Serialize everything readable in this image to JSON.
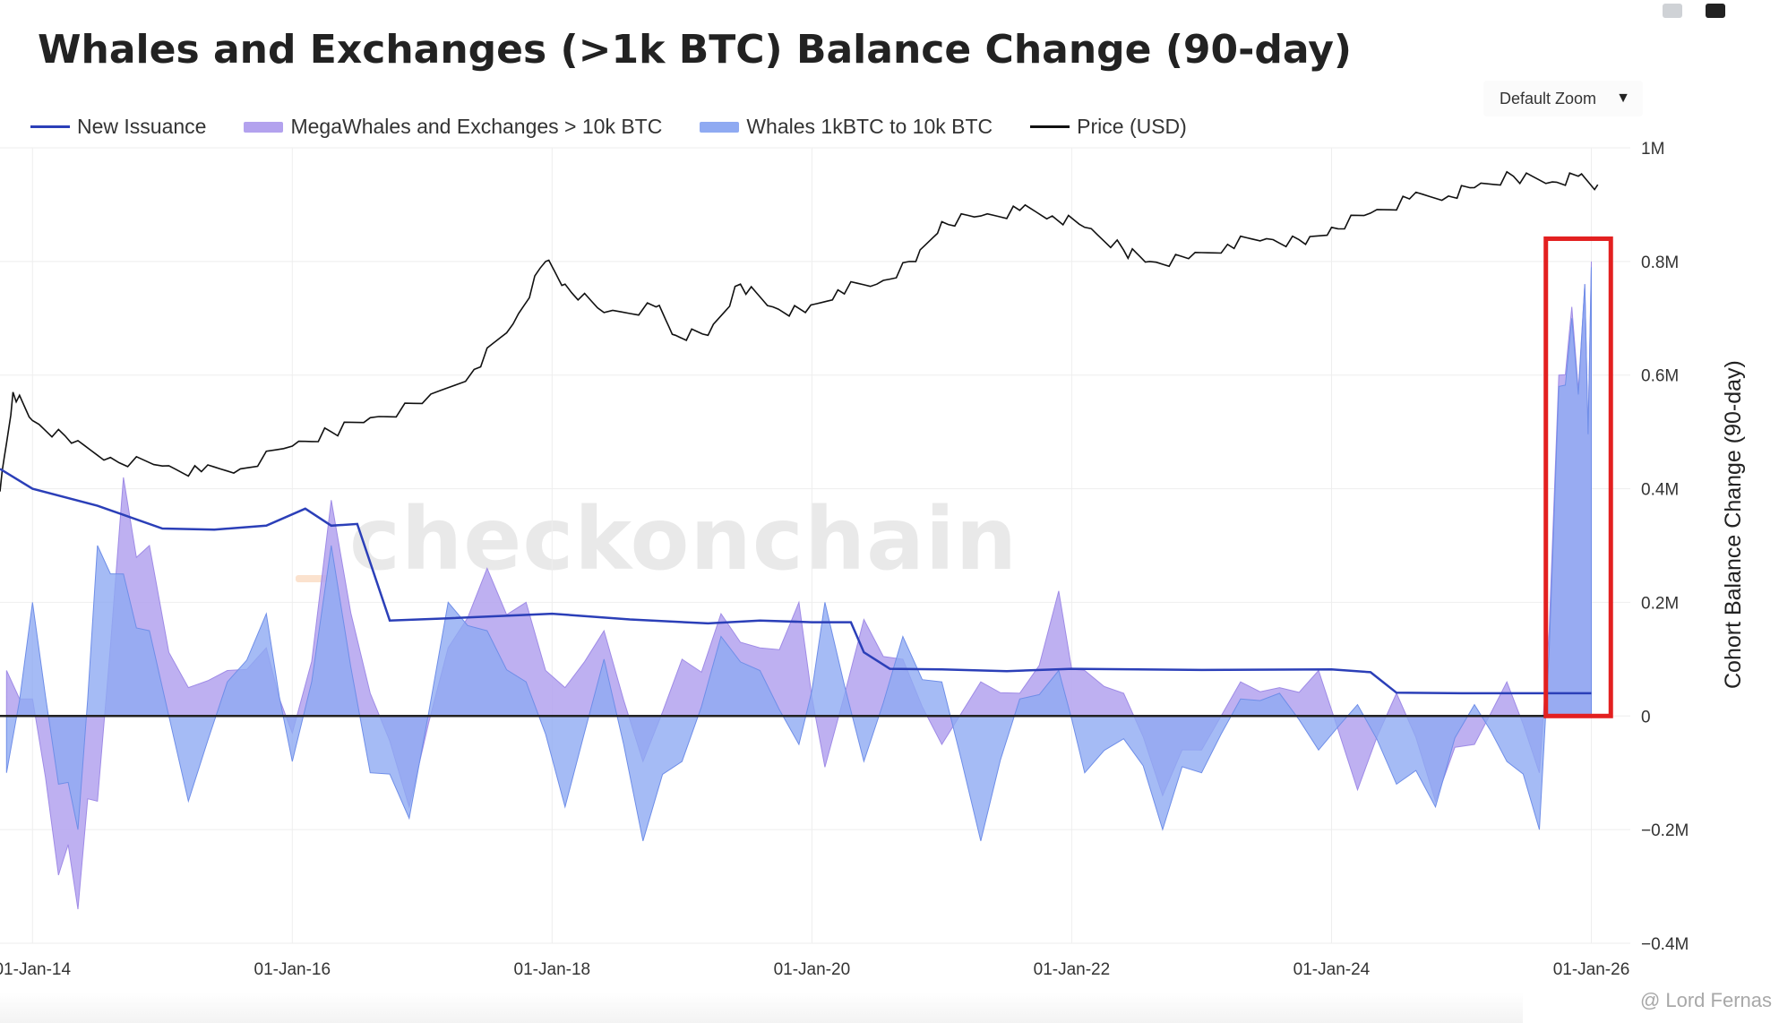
{
  "header": {
    "title": "Whales and Exchanges (>1k BTC) Balance Change (90-day)",
    "zoom_label": "Default Zoom",
    "zoom_arrow": "▼"
  },
  "icons": {
    "camera": "camera-icon",
    "bars": "bar-chart-icon",
    "dropdown": "caret-down-icon"
  },
  "watermark": "checkonchain",
  "credit": "@ Lord Fernas",
  "colors": {
    "issuance": "#2b3fb8",
    "mega": "#b3a2ee",
    "whales": "#8faaf2",
    "price": "#111111",
    "highlight": "#e32020",
    "zero": "#222222",
    "grid": "#eeeeee"
  },
  "chart_data": {
    "type": "area",
    "title": "Whales and Exchanges (>1k BTC) Balance Change (90-day)",
    "ylabel": "Cohort Balance Change (90-day)",
    "ylim": [
      -400000,
      1000000
    ],
    "yticks": [
      -400000,
      -200000,
      0,
      200000,
      400000,
      600000,
      800000,
      1000000
    ],
    "ytick_labels": [
      "−0.4M",
      "−0.2M",
      "0",
      "0.2M",
      "0.4M",
      "0.6M",
      "0.8M",
      "1M"
    ],
    "xticks": [
      2014.0,
      2016.0,
      2018.0,
      2020.0,
      2022.0,
      2024.0,
      2026.0
    ],
    "xtick_labels": [
      "01-Jan-14",
      "01-Jan-16",
      "01-Jan-18",
      "01-Jan-20",
      "01-Jan-22",
      "01-Jan-24",
      "01-Jan-26"
    ],
    "xrange": [
      2013.75,
      2026.3
    ],
    "legend": [
      {
        "name": "New Issuance",
        "kind": "line"
      },
      {
        "name": "MegaWhales and Exchanges > 10k BTC",
        "kind": "area"
      },
      {
        "name": "Whales 1kBTC to 10k BTC",
        "kind": "area"
      },
      {
        "name": "Price (USD)",
        "kind": "line"
      }
    ],
    "series": [
      {
        "name": "New Issuance",
        "axis": "left",
        "x": [
          2013.75,
          2014.0,
          2014.5,
          2015.0,
          2015.4,
          2015.8,
          2016.1,
          2016.3,
          2016.5,
          2016.75,
          2017.2,
          2018.0,
          2018.6,
          2019.2,
          2019.6,
          2020.0,
          2020.3,
          2020.4,
          2020.6,
          2021.0,
          2021.5,
          2022.0,
          2023.0,
          2024.0,
          2024.3,
          2024.5,
          2025.0,
          2026.0
        ],
        "values": [
          435000,
          400000,
          370000,
          330000,
          328000,
          335000,
          365000,
          335000,
          338000,
          168000,
          172000,
          180000,
          170000,
          163000,
          168000,
          165000,
          165000,
          112000,
          83000,
          82000,
          79000,
          83000,
          81000,
          82000,
          77000,
          41000,
          40000,
          40000
        ]
      },
      {
        "name": "MegaWhales and Exchanges > 10k BTC",
        "axis": "left",
        "x": [
          2013.8,
          2014.0,
          2014.2,
          2014.35,
          2014.5,
          2014.7,
          2014.9,
          2015.2,
          2015.5,
          2015.8,
          2016.0,
          2016.3,
          2016.6,
          2016.9,
          2017.2,
          2017.5,
          2017.8,
          2018.1,
          2018.4,
          2018.7,
          2019.0,
          2019.3,
          2019.6,
          2019.9,
          2020.1,
          2020.4,
          2020.7,
          2021.0,
          2021.3,
          2021.6,
          2021.9,
          2022.1,
          2022.4,
          2022.7,
          2023.0,
          2023.3,
          2023.6,
          2023.9,
          2024.2,
          2024.5,
          2024.8,
          2025.1,
          2025.35,
          2025.6,
          2025.75,
          2025.85,
          2025.95,
          2026.0
        ],
        "values": [
          80000,
          30000,
          -280000,
          -340000,
          -150000,
          420000,
          300000,
          50000,
          80000,
          120000,
          -30000,
          380000,
          40000,
          -160000,
          120000,
          260000,
          200000,
          50000,
          150000,
          -80000,
          100000,
          180000,
          120000,
          200000,
          -90000,
          170000,
          100000,
          -50000,
          60000,
          40000,
          220000,
          80000,
          40000,
          -140000,
          -60000,
          60000,
          50000,
          80000,
          -130000,
          40000,
          -150000,
          -50000,
          60000,
          -100000,
          600000,
          720000,
          760000,
          800000
        ]
      },
      {
        "name": "Whales 1kBTC to 10k BTC",
        "axis": "left",
        "x": [
          2013.8,
          2014.0,
          2014.2,
          2014.35,
          2014.5,
          2014.7,
          2014.9,
          2015.2,
          2015.5,
          2015.8,
          2016.0,
          2016.3,
          2016.6,
          2016.9,
          2017.2,
          2017.5,
          2017.8,
          2018.1,
          2018.4,
          2018.7,
          2019.0,
          2019.3,
          2019.6,
          2019.9,
          2020.1,
          2020.4,
          2020.7,
          2021.0,
          2021.3,
          2021.6,
          2021.9,
          2022.1,
          2022.4,
          2022.7,
          2023.0,
          2023.3,
          2023.6,
          2023.9,
          2024.2,
          2024.5,
          2024.8,
          2025.1,
          2025.35,
          2025.6,
          2025.75,
          2025.85,
          2025.95,
          2026.0
        ],
        "values": [
          -100000,
          200000,
          -120000,
          -200000,
          300000,
          250000,
          150000,
          -150000,
          60000,
          180000,
          -80000,
          300000,
          -100000,
          -180000,
          200000,
          150000,
          60000,
          -160000,
          100000,
          -220000,
          -80000,
          140000,
          80000,
          -50000,
          200000,
          -80000,
          140000,
          60000,
          -220000,
          30000,
          80000,
          -100000,
          -40000,
          -200000,
          -100000,
          30000,
          40000,
          -60000,
          20000,
          -120000,
          -160000,
          20000,
          -80000,
          -200000,
          580000,
          700000,
          760000,
          790000
        ]
      },
      {
        "name": "Price (USD)",
        "axis": "left-scaled",
        "x": [
          2013.75,
          2013.85,
          2014.0,
          2014.3,
          2014.6,
          2015.0,
          2015.3,
          2015.6,
          2016.0,
          2016.3,
          2016.6,
          2017.0,
          2017.4,
          2017.7,
          2017.95,
          2018.1,
          2018.4,
          2018.8,
          2018.95,
          2019.2,
          2019.45,
          2019.7,
          2019.95,
          2020.2,
          2020.5,
          2020.8,
          2021.0,
          2021.3,
          2021.6,
          2021.85,
          2022.1,
          2022.4,
          2022.6,
          2022.9,
          2023.2,
          2023.5,
          2023.8,
          2024.0,
          2024.3,
          2024.6,
          2024.9,
          2025.1,
          2025.4,
          2025.7,
          2025.9,
          2026.05
        ],
        "values": [
          395000,
          570000,
          520000,
          480000,
          455000,
          440000,
          430000,
          435000,
          475000,
          500000,
          525000,
          550000,
          610000,
          690000,
          800000,
          760000,
          710000,
          720000,
          670000,
          670000,
          760000,
          720000,
          710000,
          750000,
          760000,
          800000,
          870000,
          880000,
          890000,
          880000,
          860000,
          820000,
          800000,
          805000,
          830000,
          840000,
          830000,
          860000,
          885000,
          910000,
          915000,
          930000,
          950000,
          940000,
          950000,
          935000
        ]
      }
    ],
    "highlight": {
      "x0": 2025.65,
      "x1": 2026.15,
      "y0": 0,
      "y1": 840000
    }
  }
}
